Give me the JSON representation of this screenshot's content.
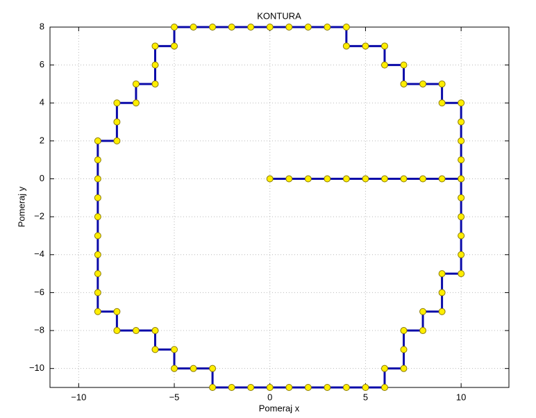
{
  "chart_data": {
    "type": "line",
    "title": "KONTURA",
    "x_label": "Pomeraj x",
    "y_label": "Pomeraj y",
    "x": [
      0,
      1,
      2,
      3,
      4,
      5,
      6,
      7,
      8,
      9,
      10,
      10,
      10,
      10,
      10,
      9,
      9,
      8,
      7,
      7,
      6,
      6,
      5,
      4,
      4,
      3,
      2,
      1,
      0,
      -1,
      -2,
      -3,
      -4,
      -5,
      -5,
      -6,
      -6,
      -6,
      -7,
      -7,
      -8,
      -8,
      -8,
      -9,
      -9,
      -9,
      -9,
      -9,
      -9,
      -9,
      -9,
      -9,
      -9,
      -8,
      -8,
      -7,
      -6,
      -6,
      -5,
      -5,
      -4,
      -3,
      -3,
      -2,
      -1,
      0,
      1,
      2,
      3,
      4,
      5,
      6,
      6,
      7,
      7,
      7,
      8,
      8,
      9,
      9,
      9,
      10,
      10,
      10,
      10,
      10,
      10
    ],
    "values": [
      0,
      0,
      0,
      0,
      0,
      0,
      0,
      0,
      0,
      0,
      0,
      1,
      2,
      3,
      4,
      4,
      5,
      5,
      5,
      6,
      6,
      7,
      7,
      7,
      8,
      8,
      8,
      8,
      8,
      8,
      8,
      8,
      8,
      8,
      7,
      7,
      6,
      5,
      5,
      4,
      4,
      3,
      2,
      2,
      1,
      0,
      -1,
      -2,
      -3,
      -4,
      -5,
      -6,
      -7,
      -7,
      -8,
      -8,
      -8,
      -9,
      -9,
      -10,
      -10,
      -10,
      -11,
      -11,
      -11,
      -11,
      -11,
      -11,
      -11,
      -11,
      -11,
      -11,
      -10,
      -10,
      -9,
      -8,
      -8,
      -7,
      -7,
      -6,
      -5,
      -5,
      -4,
      -3,
      -2,
      -1,
      0
    ],
    "color": "#0a0aa8",
    "marker_color": "#ffee00",
    "xlim": [
      -11.5,
      12.5
    ],
    "ylim": [
      -11,
      8
    ],
    "xticks": [
      {
        "value": -10,
        "label": "−10"
      },
      {
        "value": -5,
        "label": "−5"
      },
      0,
      5,
      10
    ],
    "yticks": [
      {
        "value": -10,
        "label": "−10"
      },
      {
        "value": -8,
        "label": "−8"
      },
      {
        "value": -6,
        "label": "−6"
      },
      {
        "value": -4,
        "label": "−4"
      },
      {
        "value": -2,
        "label": "−2"
      },
      0,
      2,
      4,
      6,
      8
    ],
    "grid": true
  }
}
